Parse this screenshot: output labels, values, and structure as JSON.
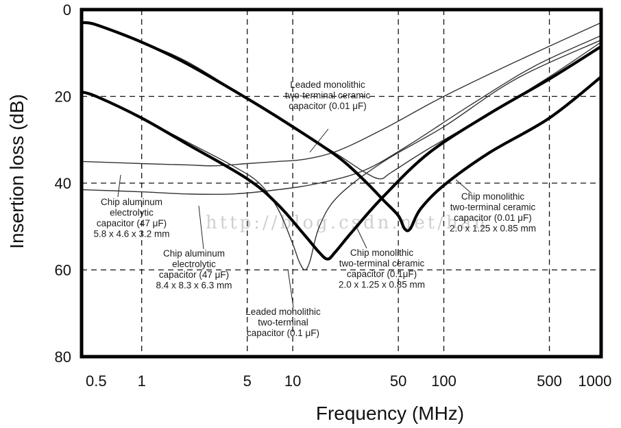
{
  "chart_data": {
    "type": "line",
    "xscale": "log",
    "xlim": [
      0.4,
      1100
    ],
    "ylim": [
      0,
      80
    ],
    "y_inverted": true,
    "xlabel": "Frequency (MHz)",
    "ylabel": "Insertion loss (dB)",
    "x_ticks": [
      {
        "value": 0.5,
        "label": "0.5"
      },
      {
        "value": 1,
        "label": "1"
      },
      {
        "value": 5,
        "label": "5"
      },
      {
        "value": 10,
        "label": "10"
      },
      {
        "value": 50,
        "label": "50"
      },
      {
        "value": 100,
        "label": "100"
      },
      {
        "value": 500,
        "label": "500"
      },
      {
        "value": 1000,
        "label": "1000"
      }
    ],
    "y_ticks": [
      {
        "value": 0,
        "label": "0"
      },
      {
        "value": 20,
        "label": "20"
      },
      {
        "value": 40,
        "label": "40"
      },
      {
        "value": 60,
        "label": "60"
      },
      {
        "value": 80,
        "label": "80"
      }
    ],
    "grid": true,
    "series": [
      {
        "id": "chip-al-47uF-5.8",
        "weight": "thin",
        "points": [
          [
            0.4,
            35
          ],
          [
            0.7,
            35.3
          ],
          [
            1,
            35.5
          ],
          [
            2,
            35.8
          ],
          [
            3,
            36
          ],
          [
            5,
            35.5
          ],
          [
            8,
            35
          ],
          [
            12,
            34.5
          ],
          [
            20,
            32.5
          ],
          [
            40,
            27.5
          ],
          [
            100,
            20
          ],
          [
            300,
            12
          ],
          [
            1100,
            3
          ]
        ]
      },
      {
        "id": "chip-al-47uF-8.4",
        "weight": "thin",
        "points": [
          [
            0.4,
            41.5
          ],
          [
            1,
            42
          ],
          [
            2,
            42.5
          ],
          [
            4,
            42.5
          ],
          [
            8,
            41.5
          ],
          [
            15,
            40
          ],
          [
            30,
            37
          ],
          [
            60,
            31
          ],
          [
            150,
            22
          ],
          [
            400,
            13
          ],
          [
            1100,
            6
          ]
        ]
      },
      {
        "id": "leaded-mono-0.01uF",
        "weight": "thin",
        "points": [
          [
            0.4,
            3
          ],
          [
            0.5,
            3.5
          ],
          [
            1,
            7.5
          ],
          [
            2,
            12
          ],
          [
            5,
            20.5
          ],
          [
            10,
            27
          ],
          [
            20,
            33.5
          ],
          [
            30,
            37.5
          ],
          [
            38,
            39
          ],
          [
            45,
            37.5
          ],
          [
            80,
            32
          ],
          [
            200,
            24
          ],
          [
            500,
            15.5
          ],
          [
            1100,
            7.5
          ]
        ]
      },
      {
        "id": "leaded-mono-0.1uF",
        "weight": "thin",
        "points": [
          [
            0.4,
            19
          ],
          [
            0.5,
            20
          ],
          [
            1,
            25
          ],
          [
            2,
            30.5
          ],
          [
            4,
            36
          ],
          [
            6,
            40
          ],
          [
            8,
            46
          ],
          [
            10,
            54
          ],
          [
            11,
            58
          ],
          [
            12,
            60
          ],
          [
            13,
            58
          ],
          [
            15,
            50
          ],
          [
            20,
            43
          ],
          [
            40,
            35
          ],
          [
            100,
            27
          ],
          [
            300,
            16
          ],
          [
            1100,
            7
          ]
        ]
      },
      {
        "id": "chip-mono-0.1uF",
        "weight": "bold",
        "points": [
          [
            0.4,
            19
          ],
          [
            0.5,
            20
          ],
          [
            1,
            25
          ],
          [
            2,
            31
          ],
          [
            5,
            39
          ],
          [
            8,
            45
          ],
          [
            12,
            52
          ],
          [
            15,
            56
          ],
          [
            17,
            57.5
          ],
          [
            19,
            56
          ],
          [
            25,
            51
          ],
          [
            40,
            43
          ],
          [
            80,
            33
          ],
          [
            200,
            24
          ],
          [
            500,
            16
          ],
          [
            1100,
            8.5
          ]
        ]
      },
      {
        "id": "chip-mono-0.01uF",
        "weight": "bold",
        "points": [
          [
            0.4,
            3
          ],
          [
            0.5,
            3.5
          ],
          [
            1,
            7.5
          ],
          [
            2,
            12.5
          ],
          [
            5,
            20.5
          ],
          [
            10,
            27
          ],
          [
            20,
            34
          ],
          [
            30,
            39.5
          ],
          [
            40,
            44
          ],
          [
            50,
            47.5
          ],
          [
            55,
            50.5
          ],
          [
            60,
            50.5
          ],
          [
            70,
            46
          ],
          [
            100,
            40.5
          ],
          [
            200,
            33
          ],
          [
            500,
            25
          ],
          [
            1100,
            15.5
          ]
        ]
      }
    ],
    "annotations": [
      {
        "id": "ann-leaded-001",
        "lines": [
          "Leaded monolithic",
          "two-terminal ceramic",
          "capacitor (0.01 μF)"
        ]
      },
      {
        "id": "ann-chip-al-1",
        "lines": [
          "Chip aluminum",
          "electrolytic",
          "capacitor (47 μF)",
          "5.8 x 4.6 x 3.2 mm"
        ]
      },
      {
        "id": "ann-chip-al-2",
        "lines": [
          "Chip aluminum",
          "electrolytic",
          "capacitor (47 μF)",
          "8.4 x 8.3 x 6.3 mm"
        ]
      },
      {
        "id": "ann-leaded-01",
        "lines": [
          "Leaded monolithic",
          "two-terminal",
          "capacitor (0.1 μF)"
        ]
      },
      {
        "id": "ann-chip-mono-01",
        "lines": [
          "Chip monolithic",
          "two-terminal ceramic",
          "capacitor (0.1μF)",
          "2.0 x 1.25 x 0.85 mm"
        ]
      },
      {
        "id": "ann-chip-mono-001",
        "lines": [
          "Chip monolithic",
          "two-terminal ceramic",
          "capacitor (0.01 μF)",
          "2.0 x 1.25 x 0.85 mm"
        ]
      }
    ]
  },
  "watermark": "http://blog.csdn.net/han"
}
